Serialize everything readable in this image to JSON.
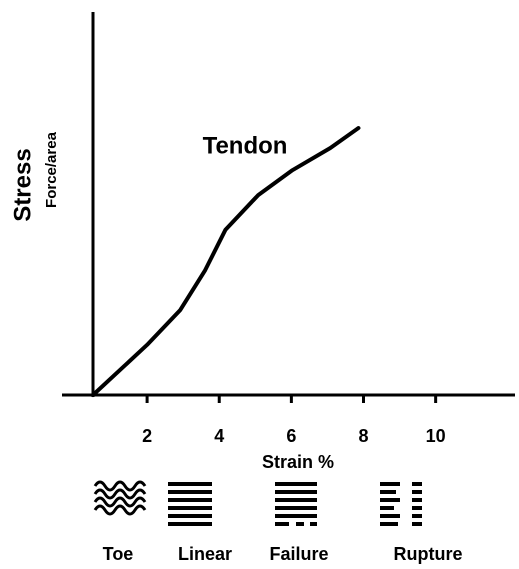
{
  "chart_data": {
    "type": "line",
    "xlabel": "Strain %",
    "ylabel": "Stress",
    "ylabel_sub": "Force/area",
    "annotation": "Tendon",
    "x": [
      0.5,
      2.0,
      2.92,
      3.61,
      4.17,
      5.08,
      6.03,
      7.08,
      7.86
    ],
    "values": [
      0,
      13.1,
      22.2,
      32.6,
      43.1,
      52.2,
      58.7,
      64.5,
      69.7
    ],
    "color": "#000000",
    "xlim": [
      0.5,
      12.2
    ],
    "ylim": [
      0,
      100
    ],
    "xticks": [
      2,
      4,
      6,
      8,
      10
    ],
    "regions": [
      "Toe",
      "Linear",
      "Failure",
      "Rupture"
    ]
  }
}
